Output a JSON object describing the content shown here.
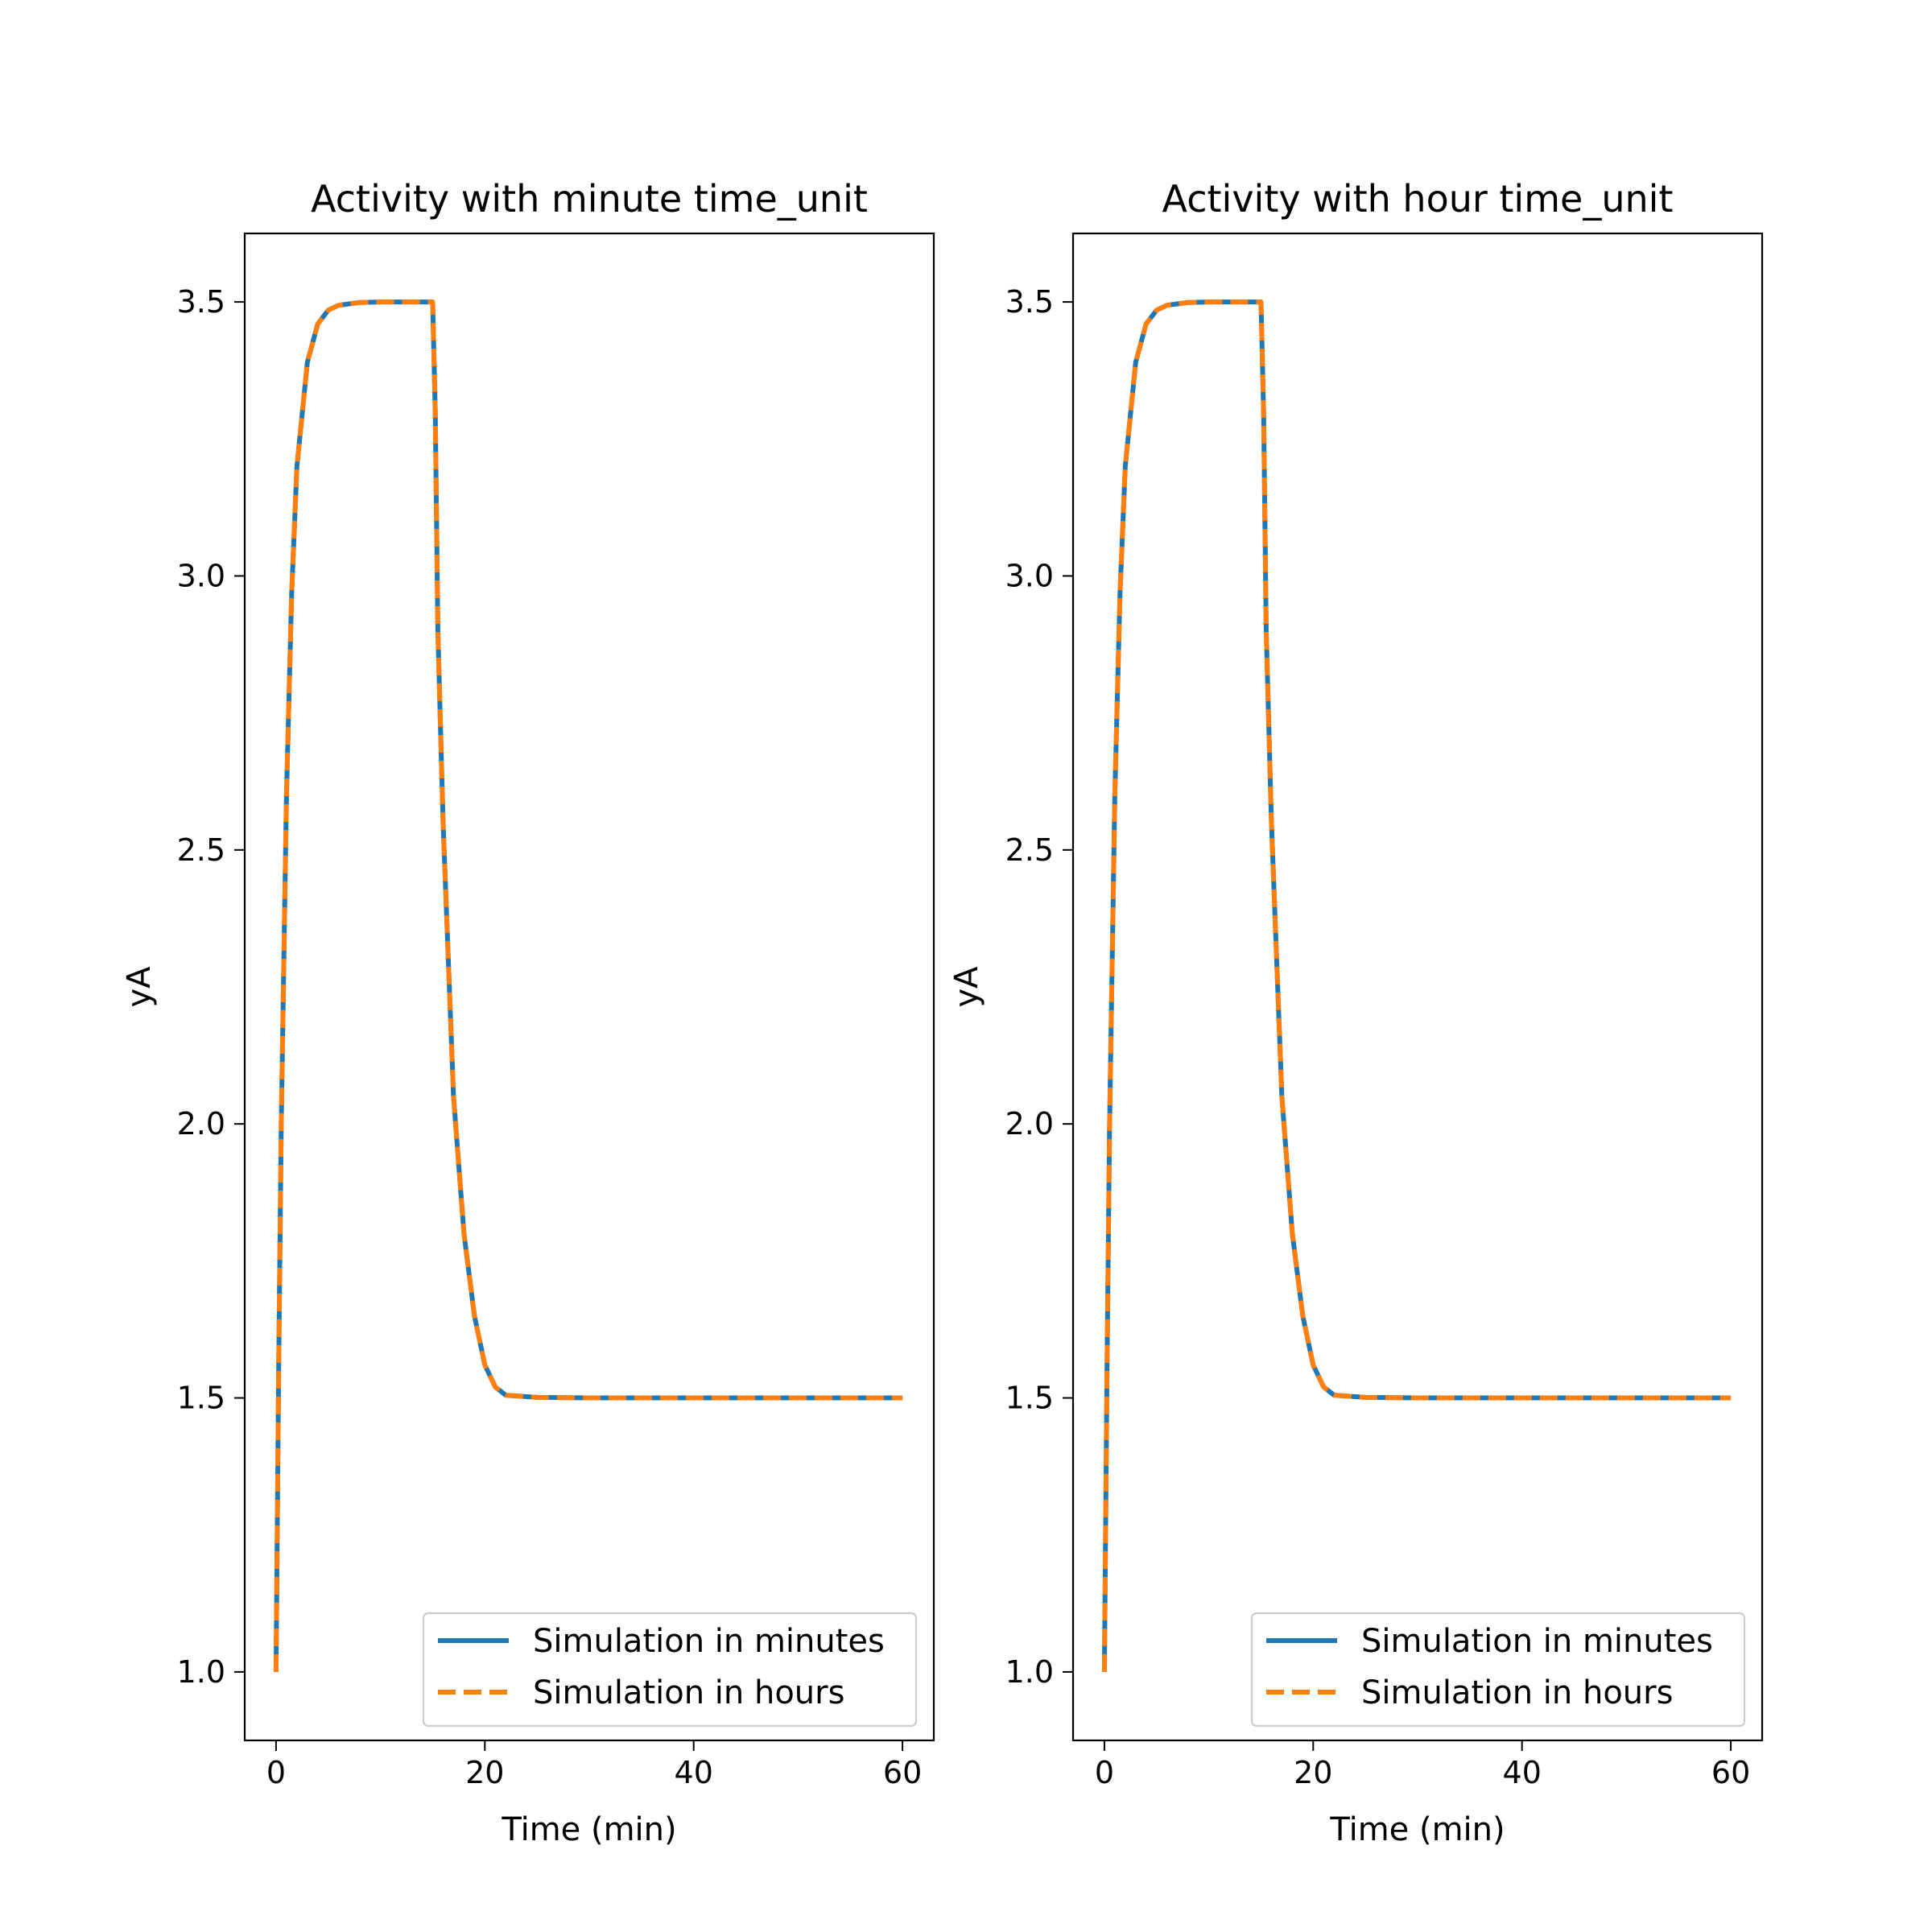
{
  "colors": {
    "minutes": "#1f77b4",
    "hours": "#ff7f0e"
  },
  "chart_data": [
    {
      "type": "line",
      "title": "Activity with minute time_unit",
      "xlabel": "Time (min)",
      "ylabel": "yA",
      "xlim": [
        -3,
        63
      ],
      "ylim": [
        0.875,
        3.625
      ],
      "xticks": [
        0,
        20,
        40,
        60
      ],
      "xticklabels": [
        "0",
        "20",
        "40",
        "60"
      ],
      "yticks": [
        1.0,
        1.5,
        2.0,
        2.5,
        3.0,
        3.5
      ],
      "yticklabels": [
        "1.0",
        "1.5",
        "2.0",
        "2.5",
        "3.0",
        "3.5"
      ],
      "legend_position": "lower right",
      "series": [
        {
          "name": "Simulation in minutes",
          "style": "solid",
          "x": [
            0,
            0.25,
            0.5,
            1,
            1.5,
            2,
            3,
            4,
            5,
            6,
            8,
            10,
            12,
            15,
            15.25,
            15.5,
            16,
            16.5,
            17,
            18,
            19,
            20,
            21,
            22,
            25,
            30,
            40,
            50,
            60
          ],
          "y": [
            1.0,
            1.55,
            2.0,
            2.6,
            2.97,
            3.2,
            3.39,
            3.46,
            3.485,
            3.494,
            3.499,
            3.5,
            3.5,
            3.5,
            3.3,
            2.9,
            2.55,
            2.3,
            2.05,
            1.8,
            1.65,
            1.56,
            1.52,
            1.505,
            1.501,
            1.5,
            1.5,
            1.5,
            1.5
          ]
        },
        {
          "name": "Simulation in hours",
          "style": "dashed",
          "x": [
            0,
            0.25,
            0.5,
            1,
            1.5,
            2,
            3,
            4,
            5,
            6,
            8,
            10,
            12,
            15,
            15.25,
            15.5,
            16,
            16.5,
            17,
            18,
            19,
            20,
            21,
            22,
            25,
            30,
            40,
            50,
            60
          ],
          "y": [
            1.0,
            1.55,
            2.0,
            2.6,
            2.97,
            3.2,
            3.39,
            3.46,
            3.485,
            3.494,
            3.499,
            3.5,
            3.5,
            3.5,
            3.3,
            2.9,
            2.55,
            2.3,
            2.05,
            1.8,
            1.65,
            1.56,
            1.52,
            1.505,
            1.501,
            1.5,
            1.5,
            1.5,
            1.5
          ]
        }
      ]
    },
    {
      "type": "line",
      "title": "Activity with hour time_unit",
      "xlabel": "Time (min)",
      "ylabel": "yA",
      "xlim": [
        -3,
        63
      ],
      "ylim": [
        0.875,
        3.625
      ],
      "xticks": [
        0,
        20,
        40,
        60
      ],
      "xticklabels": [
        "0",
        "20",
        "40",
        "60"
      ],
      "yticks": [
        1.0,
        1.5,
        2.0,
        2.5,
        3.0,
        3.5
      ],
      "yticklabels": [
        "1.0",
        "1.5",
        "2.0",
        "2.5",
        "3.0",
        "3.5"
      ],
      "legend_position": "lower right",
      "series": [
        {
          "name": "Simulation in minutes",
          "style": "solid",
          "x": [
            0,
            0.25,
            0.5,
            1,
            1.5,
            2,
            3,
            4,
            5,
            6,
            8,
            10,
            12,
            15,
            15.25,
            15.5,
            16,
            16.5,
            17,
            18,
            19,
            20,
            21,
            22,
            25,
            30,
            40,
            50,
            60
          ],
          "y": [
            1.0,
            1.55,
            2.0,
            2.6,
            2.97,
            3.2,
            3.39,
            3.46,
            3.485,
            3.494,
            3.499,
            3.5,
            3.5,
            3.5,
            3.3,
            2.9,
            2.55,
            2.3,
            2.05,
            1.8,
            1.65,
            1.56,
            1.52,
            1.505,
            1.501,
            1.5,
            1.5,
            1.5,
            1.5
          ]
        },
        {
          "name": "Simulation in hours",
          "style": "dashed",
          "x": [
            0,
            0.25,
            0.5,
            1,
            1.5,
            2,
            3,
            4,
            5,
            6,
            8,
            10,
            12,
            15,
            15.25,
            15.5,
            16,
            16.5,
            17,
            18,
            19,
            20,
            21,
            22,
            25,
            30,
            40,
            50,
            60
          ],
          "y": [
            1.0,
            1.55,
            2.0,
            2.6,
            2.97,
            3.2,
            3.39,
            3.46,
            3.485,
            3.494,
            3.499,
            3.5,
            3.5,
            3.5,
            3.3,
            2.9,
            2.55,
            2.3,
            2.05,
            1.8,
            1.65,
            1.56,
            1.52,
            1.505,
            1.501,
            1.5,
            1.5,
            1.5,
            1.5
          ]
        }
      ]
    }
  ]
}
